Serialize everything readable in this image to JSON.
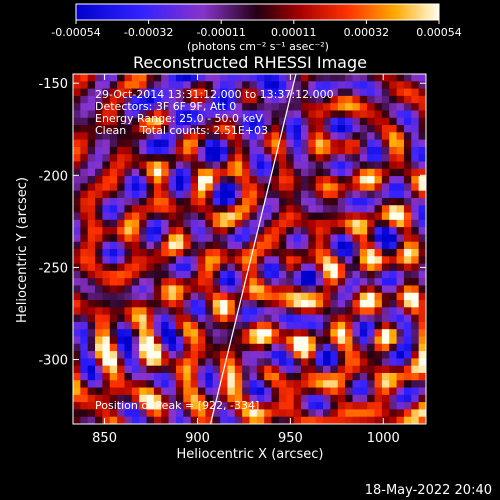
{
  "chart_data": {
    "type": "heatmap",
    "title": "Reconstructed RHESSI Image",
    "xlabel": "Heliocentric X (arcsec)",
    "ylabel": "Heliocentric Y (arcsec)",
    "xlim": [
      833,
      1023
    ],
    "ylim": [
      -335,
      -145
    ],
    "x_ticks": [
      850,
      900,
      950,
      1000
    ],
    "y_ticks": [
      -150,
      -200,
      -250,
      -300
    ],
    "colorbar": {
      "ticks": [
        "-0.00054",
        "-0.00032",
        "-0.00011",
        "0.00011",
        "0.00032",
        "0.00054"
      ],
      "range": [
        -0.00054,
        0.00054
      ],
      "unit_label": "(photons cm⁻² s⁻¹ asec⁻²)"
    },
    "annotations": [
      "29-Oct-2014 13:31:12.000 to 13:37:12.000",
      "Detectors: 3F 6F 9F, Att 0",
      "Energy Range: 25.0 - 50.0 keV",
      "Clean    Total counts: 2.51E+03"
    ],
    "peak_text": "Position of Peak = [922, -334]",
    "limb_line": {
      "x1": 907,
      "y1": -335,
      "x2": 953,
      "y2": -145
    },
    "grid_size": [
      48,
      48
    ],
    "grid": false
  },
  "timestamp": "18-May-2022 20:40"
}
